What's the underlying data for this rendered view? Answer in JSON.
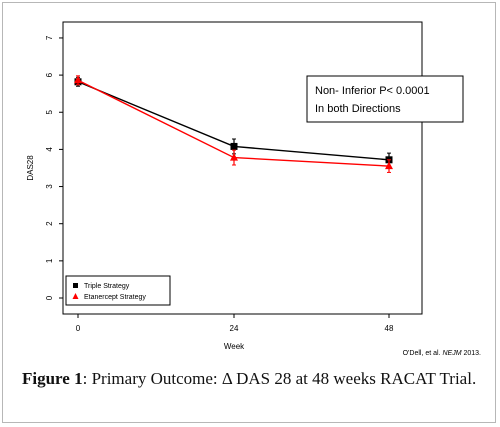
{
  "chart_data": {
    "type": "line",
    "xlabel": "Week",
    "ylabel": "DAS28",
    "x": [
      0,
      24,
      48
    ],
    "x_ticks": [
      "0",
      "24",
      "48"
    ],
    "y_ticks": [
      "0",
      "1",
      "2",
      "3",
      "4",
      "5",
      "6",
      "7"
    ],
    "ylim": [
      0,
      7
    ],
    "series": [
      {
        "name": "Triple Strategy",
        "color": "#000000",
        "marker": "square",
        "values": [
          5.82,
          4.08,
          3.72
        ],
        "error": [
          0.12,
          0.2,
          0.18
        ]
      },
      {
        "name": "Etanercept Strategy",
        "color": "#ff0000",
        "marker": "triangle",
        "values": [
          5.86,
          3.78,
          3.55
        ],
        "error": [
          0.12,
          0.2,
          0.17
        ]
      }
    ],
    "annotation": {
      "line1": "Non- Inferior  P< 0.0001",
      "line2": "In both Directions"
    },
    "legend_position": "bottom-left",
    "credit_prefix": "O'Dell, et al. ",
    "credit_journal": "NEJM",
    "credit_suffix": " 2013."
  },
  "caption": {
    "label": "Figure 1",
    "text": ": Primary Outcome: Δ DAS 28 at 48 weeks RACAT Trial."
  }
}
